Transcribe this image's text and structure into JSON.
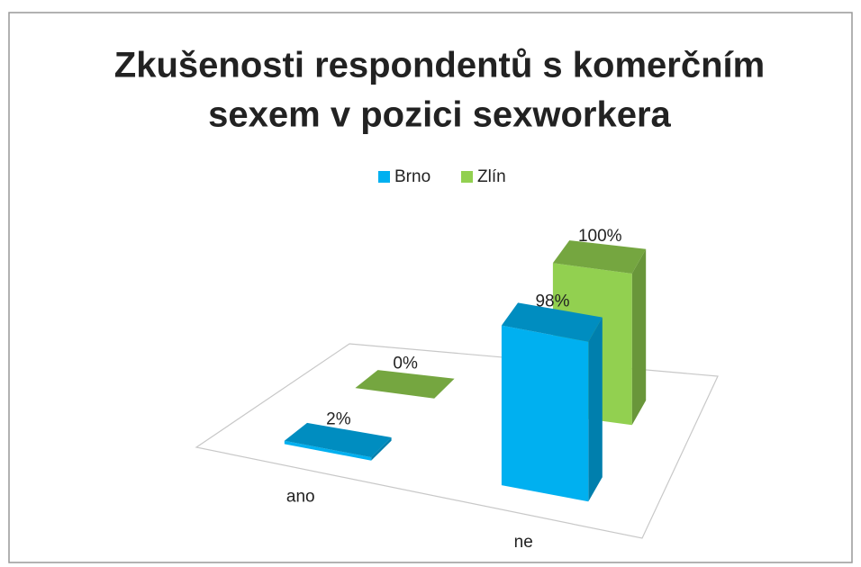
{
  "chart_data": {
    "type": "bar3d",
    "title": [
      "Zkušenosti respondentů s komerčním",
      "sexem v pozici sexworkera"
    ],
    "categories": [
      "ano",
      "ne"
    ],
    "series": [
      {
        "name": "Brno",
        "color": "#00b0f0",
        "values": [
          2,
          98
        ],
        "value_labels": [
          "2%",
          "98%"
        ]
      },
      {
        "name": "Zlín",
        "color": "#92d050",
        "values": [
          0,
          100
        ],
        "value_labels": [
          "0%",
          "100%"
        ]
      }
    ],
    "legend": "top"
  }
}
